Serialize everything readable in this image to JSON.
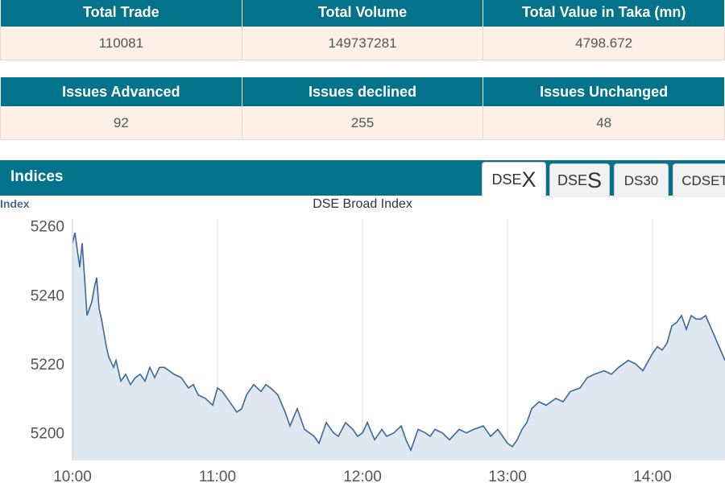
{
  "summary": {
    "headers": [
      "Total Trade",
      "Total Volume",
      "Total Value in Taka (mn)"
    ],
    "values": [
      "110081",
      "149737281",
      "4798.672"
    ]
  },
  "issues": {
    "headers": [
      "Issues Advanced",
      "Issues declined",
      "Issues Unchanged"
    ],
    "values": [
      "92",
      "255",
      "48"
    ]
  },
  "indices": {
    "title": "Indices",
    "tabs": [
      {
        "prefix": "DSE",
        "suffix": "X"
      },
      {
        "prefix": "DSE",
        "suffix": "S"
      },
      {
        "label": "DS30"
      },
      {
        "label": "CDSET"
      }
    ]
  },
  "colors": {
    "header_bg": "#03728b",
    "value_bg": "#fdf0e6",
    "line": "#3a6a9a",
    "fill": "#dfe7f0"
  },
  "chart_data": {
    "type": "area",
    "title": "DSE Broad Index",
    "ylabel": "Index",
    "xticks": [
      "10:00",
      "11:00",
      "12:00",
      "13:00",
      "14:00"
    ],
    "yticks": [
      5200,
      5220,
      5240,
      5260
    ],
    "xlim": [
      "10:00",
      "14:30"
    ],
    "ylim": [
      5192,
      5262
    ],
    "grid": "x",
    "series": [
      {
        "x": [
          "10:00",
          "10:01",
          "10:03",
          "10:04",
          "10:05",
          "10:06",
          "10:08",
          "10:09",
          "10:10",
          "10:11",
          "10:12",
          "10:14",
          "10:15",
          "10:17",
          "10:18",
          "10:20",
          "10:22",
          "10:24",
          "10:26",
          "10:28",
          "10:30",
          "10:32",
          "10:34",
          "10:36",
          "10:38",
          "10:40",
          "10:42",
          "10:45",
          "10:48",
          "10:50",
          "10:52",
          "10:55",
          "10:58",
          "11:00",
          "11:02",
          "11:05",
          "11:08",
          "11:10",
          "11:12",
          "11:15",
          "11:18",
          "11:20",
          "11:22",
          "11:25",
          "11:28",
          "11:30",
          "11:33",
          "11:36",
          "11:40",
          "11:42",
          "11:45",
          "11:48",
          "11:50",
          "11:53",
          "11:56",
          "11:58",
          "12:00",
          "12:02",
          "12:05",
          "12:08",
          "12:10",
          "12:13",
          "12:16",
          "12:18",
          "12:20",
          "12:23",
          "12:26",
          "12:28",
          "12:30",
          "12:33",
          "12:36",
          "12:40",
          "12:43",
          "12:46",
          "12:50",
          "12:53",
          "12:56",
          "13:00",
          "13:02",
          "13:04",
          "13:06",
          "13:08",
          "13:10",
          "13:13",
          "13:16",
          "13:20",
          "13:23",
          "13:26",
          "13:30",
          "13:33",
          "13:36",
          "13:40",
          "13:43",
          "13:46",
          "13:50",
          "13:53",
          "13:56",
          "14:00",
          "14:02",
          "14:04",
          "14:06",
          "14:08",
          "14:10",
          "14:12",
          "14:14",
          "14:16",
          "14:18",
          "14:20",
          "14:22",
          "14:30"
        ],
        "y": [
          5255,
          5258,
          5248,
          5255,
          5245,
          5234,
          5238,
          5242,
          5245,
          5236,
          5233,
          5225,
          5222,
          5219,
          5221,
          5215,
          5217,
          5214,
          5216,
          5217,
          5215,
          5219,
          5216,
          5219,
          5219,
          5218,
          5217,
          5216,
          5213,
          5214,
          5211,
          5210,
          5208,
          5213,
          5212,
          5209,
          5206,
          5207,
          5211,
          5214,
          5212,
          5214,
          5213,
          5211,
          5206,
          5202,
          5207,
          5201,
          5199,
          5197,
          5203,
          5200,
          5199,
          5203,
          5201,
          5199,
          5200,
          5203,
          5198,
          5201,
          5199,
          5200,
          5202,
          5198,
          5195,
          5201,
          5200,
          5199,
          5201,
          5200,
          5198,
          5201,
          5200,
          5201,
          5202,
          5199,
          5201,
          5197,
          5196,
          5198,
          5201,
          5203,
          5207,
          5209,
          5208,
          5210,
          5209,
          5212,
          5213,
          5216,
          5217,
          5218,
          5217,
          5219,
          5221,
          5220,
          5218,
          5223,
          5225,
          5224,
          5226,
          5231,
          5232,
          5234,
          5230,
          5234,
          5233,
          5233,
          5234,
          5221
        ]
      }
    ]
  }
}
